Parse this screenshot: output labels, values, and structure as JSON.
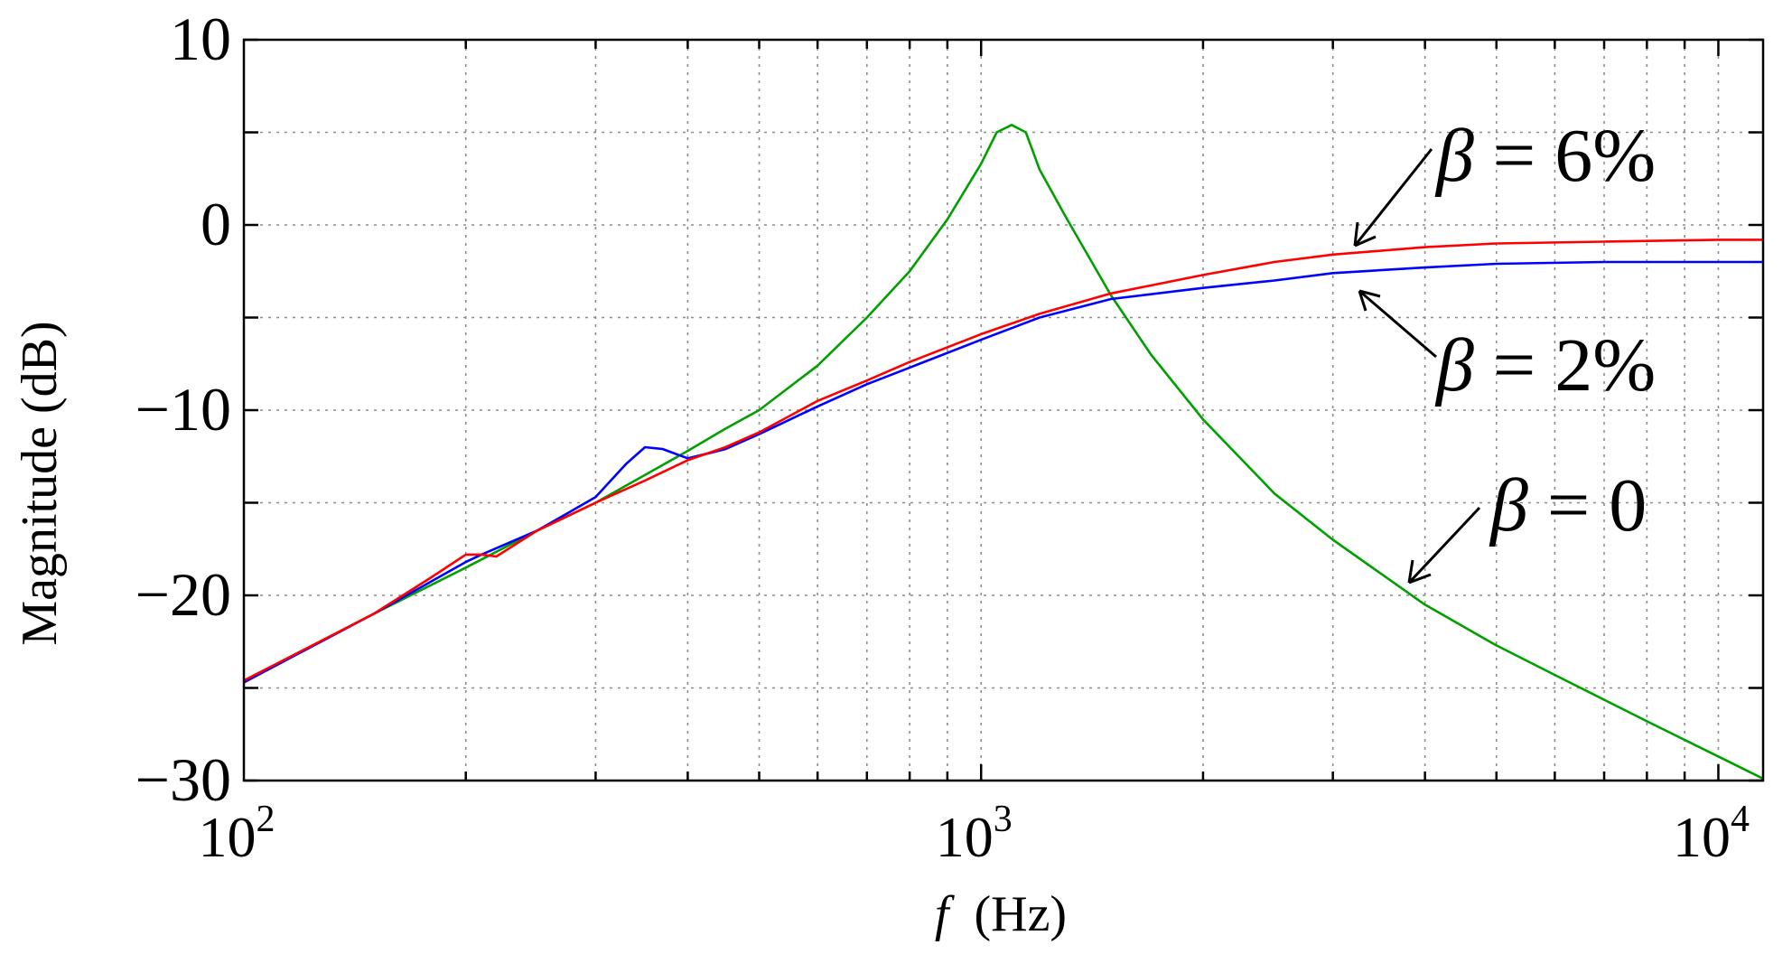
{
  "chart_data": {
    "type": "line",
    "title": "",
    "xlabel_symbol": "f",
    "xlabel_unit": "(Hz)",
    "ylabel": "Magnitude (dB)",
    "xscale": "log",
    "xlim": [
      100,
      11500
    ],
    "ylim": [
      -30,
      10
    ],
    "grid": true,
    "yticks": [
      {
        "value": 10,
        "label": "10"
      },
      {
        "value": 0,
        "label": "0"
      },
      {
        "value": -10,
        "label": "−10"
      },
      {
        "value": -20,
        "label": "−20"
      },
      {
        "value": -30,
        "label": "−30"
      }
    ],
    "ygrid_minor": [
      5,
      -5,
      -15,
      -25
    ],
    "xticks": [
      {
        "value": 100,
        "base": "10",
        "exp": "2"
      },
      {
        "value": 1000,
        "base": "10",
        "exp": "3"
      },
      {
        "value": 10000,
        "base": "10",
        "exp": "4"
      }
    ],
    "series": [
      {
        "color": "#00a000",
        "x": [
          100,
          120,
          150,
          200,
          250,
          300,
          350,
          400,
          450,
          500,
          600,
          700,
          800,
          900,
          1000,
          1050,
          1100,
          1150,
          1200,
          1300,
          1500,
          1700,
          2000,
          2500,
          3000,
          4000,
          5000,
          6000,
          8000,
          10000,
          11500
        ],
        "y": [
          -24.7,
          -23.0,
          -21.0,
          -18.5,
          -16.5,
          -15.0,
          -13.5,
          -12.2,
          -11.0,
          -10.0,
          -7.6,
          -5.0,
          -2.5,
          0.3,
          3.3,
          5.0,
          5.4,
          5.0,
          3.0,
          0.5,
          -3.8,
          -7.0,
          -10.5,
          -14.5,
          -17.0,
          -20.5,
          -22.7,
          -24.3,
          -26.8,
          -28.7,
          -29.9
        ]
      },
      {
        "color": "#0000ff",
        "x": [
          100,
          150,
          200,
          210,
          250,
          300,
          330,
          350,
          370,
          400,
          420,
          450,
          500,
          600,
          700,
          800,
          1000,
          1200,
          1500,
          2000,
          2500,
          3000,
          4000,
          5000,
          7000,
          10000,
          11500
        ],
        "y": [
          -24.7,
          -21.0,
          -18.2,
          -17.8,
          -16.5,
          -14.7,
          -12.9,
          -12.0,
          -12.1,
          -12.6,
          -12.4,
          -12.1,
          -11.3,
          -9.8,
          -8.6,
          -7.7,
          -6.2,
          -5.0,
          -4.0,
          -3.4,
          -3.0,
          -2.6,
          -2.3,
          -2.1,
          -2.0,
          -2.0,
          -2.0
        ]
      },
      {
        "color": "#ff0000",
        "x": [
          100,
          150,
          180,
          200,
          210,
          220,
          250,
          300,
          350,
          400,
          450,
          500,
          600,
          700,
          800,
          1000,
          1200,
          1500,
          2000,
          2500,
          3000,
          4000,
          5000,
          7000,
          10000,
          11500
        ],
        "y": [
          -24.6,
          -21.0,
          -19.0,
          -17.8,
          -17.8,
          -17.9,
          -16.5,
          -15.0,
          -13.8,
          -12.7,
          -12.0,
          -11.2,
          -9.5,
          -8.4,
          -7.4,
          -5.9,
          -4.8,
          -3.7,
          -2.7,
          -2.0,
          -1.6,
          -1.2,
          -1.0,
          -0.9,
          -0.8,
          -0.8
        ]
      }
    ],
    "annotations": [
      {
        "symbol": "β",
        "text": " = 6%"
      },
      {
        "symbol": "β",
        "text": " = 2%"
      },
      {
        "symbol": "β",
        "text": " = 0"
      }
    ]
  }
}
